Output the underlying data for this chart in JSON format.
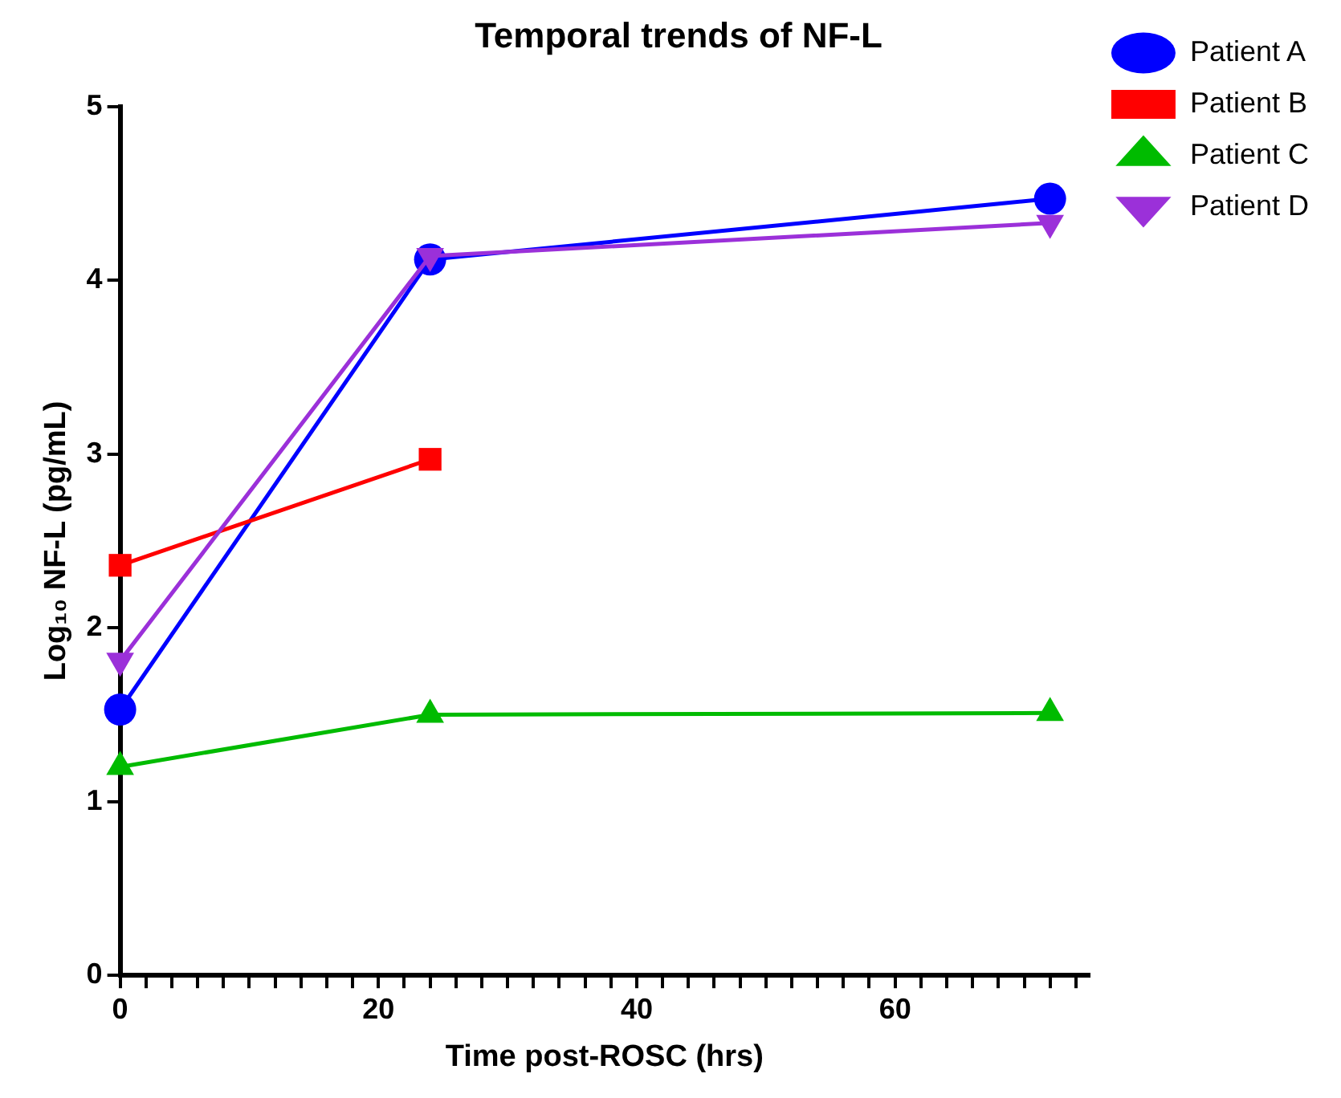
{
  "chart_data": {
    "type": "line",
    "title": "Temporal trends of NF-L",
    "xlabel": "Time post-ROSC (hrs)",
    "ylabel": "Log₁₀ NF-L (pg/mL)",
    "xlim": [
      0,
      75
    ],
    "xticks": [
      0,
      {
        "value": 2,
        "label": null
      },
      {
        "value": 4,
        "label": null
      },
      {
        "value": 6,
        "label": null
      },
      {
        "value": 8,
        "label": null
      },
      {
        "value": 10,
        "label": null
      },
      {
        "value": 12,
        "label": null
      },
      {
        "value": 14,
        "label": null
      },
      {
        "value": 16,
        "label": null
      },
      {
        "value": 18,
        "label": null
      },
      20,
      {
        "value": 22,
        "label": null
      },
      {
        "value": 24,
        "label": null
      },
      {
        "value": 26,
        "label": null
      },
      {
        "value": 28,
        "label": null
      },
      {
        "value": 30,
        "label": null
      },
      {
        "value": 32,
        "label": null
      },
      {
        "value": 34,
        "label": null
      },
      {
        "value": 36,
        "label": null
      },
      {
        "value": 38,
        "label": null
      },
      40,
      {
        "value": 42,
        "label": null
      },
      {
        "value": 44,
        "label": null
      },
      {
        "value": 46,
        "label": null
      },
      {
        "value": 48,
        "label": null
      },
      {
        "value": 50,
        "label": null
      },
      {
        "value": 52,
        "label": null
      },
      {
        "value": 54,
        "label": null
      },
      {
        "value": 56,
        "label": null
      },
      {
        "value": 58,
        "label": null
      },
      60,
      {
        "value": 62,
        "label": null
      },
      {
        "value": 64,
        "label": null
      },
      {
        "value": 66,
        "label": null
      },
      {
        "value": 68,
        "label": null
      },
      {
        "value": 70,
        "label": null
      },
      {
        "value": 72,
        "label": null
      },
      {
        "value": 74,
        "label": null
      }
    ],
    "ylim": [
      0,
      5
    ],
    "yticks": [
      0,
      1,
      2,
      3,
      4,
      5
    ],
    "grid": false,
    "legend": "right",
    "line_style": "solid",
    "series": [
      {
        "name": "Patient A",
        "color": "#0000ff",
        "marker": "circle",
        "x": [
          0,
          24,
          72
        ],
        "values": [
          1.53,
          4.12,
          4.47
        ]
      },
      {
        "name": "Patient B",
        "color": "#ff0000",
        "marker": "square",
        "x": [
          0,
          24
        ],
        "values": [
          2.36,
          2.97
        ]
      },
      {
        "name": "Patient C",
        "color": "#00bb00",
        "marker": "triangle",
        "x": [
          0,
          24,
          72
        ],
        "values": [
          1.2,
          1.5,
          1.51
        ]
      },
      {
        "name": "Patient D",
        "color": "#9b30d9",
        "marker": "triangle-down",
        "x": [
          0,
          24,
          72
        ],
        "values": [
          1.81,
          4.14,
          4.33
        ]
      }
    ]
  }
}
